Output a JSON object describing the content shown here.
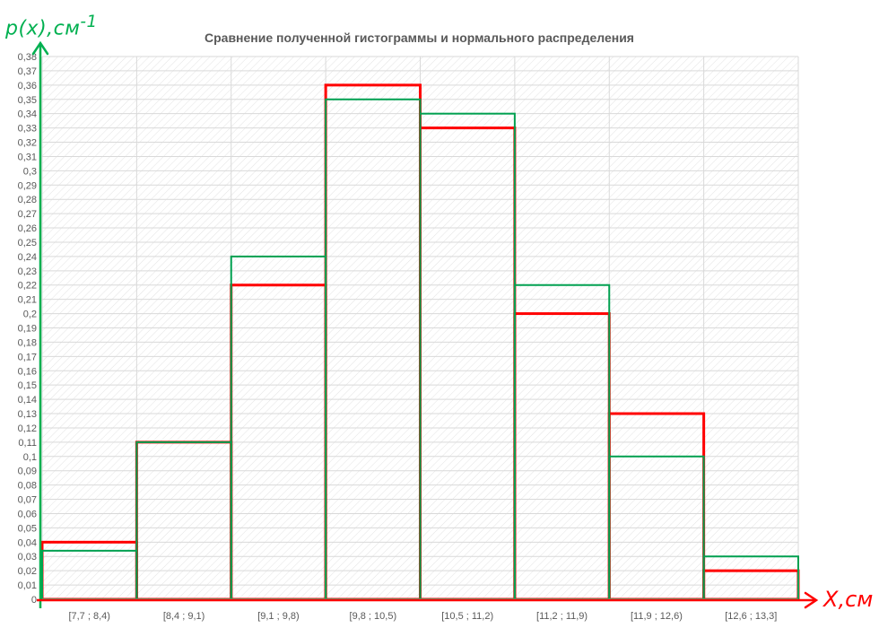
{
  "chart_data": {
    "type": "bar",
    "title": "Сравнение полученной гистограммы и нормального распределения",
    "ylabel": "p(x),см",
    "ylabel_sup": "-1",
    "xlabel": "X,см",
    "categories": [
      "[7,7 ; 8,4)",
      "[8,4 ; 9,1)",
      "[9,1 ; 9,8)",
      "[9,8 ; 10,5)",
      "[10,5 ; 11,2)",
      "[11,2 ; 11,9)",
      "[11,9 ; 12,6)",
      "[12,6 ; 13,3]"
    ],
    "series": [
      {
        "color": "#ff0000",
        "values": [
          0.04,
          0.11,
          0.22,
          0.36,
          0.33,
          0.2,
          0.13,
          0.02
        ]
      },
      {
        "color": "#00a050",
        "values": [
          0.034,
          0.11,
          0.24,
          0.35,
          0.34,
          0.22,
          0.1,
          0.03
        ]
      }
    ],
    "ylim": [
      0,
      0.38
    ],
    "ytick_step": 0.01,
    "yticks": [
      "0",
      "0,01",
      "0,02",
      "0,03",
      "0,04",
      "0,05",
      "0,06",
      "0,07",
      "0,08",
      "0,09",
      "0,1",
      "0,11",
      "0,12",
      "0,13",
      "0,14",
      "0,15",
      "0,16",
      "0,17",
      "0,18",
      "0,19",
      "0,2",
      "0,21",
      "0,22",
      "0,23",
      "0,24",
      "0,25",
      "0,26",
      "0,27",
      "0,28",
      "0,29",
      "0,3",
      "0,31",
      "0,32",
      "0,33",
      "0,34",
      "0,35",
      "0,36",
      "0,37",
      "0,38"
    ],
    "grid": true,
    "legend": "none"
  }
}
